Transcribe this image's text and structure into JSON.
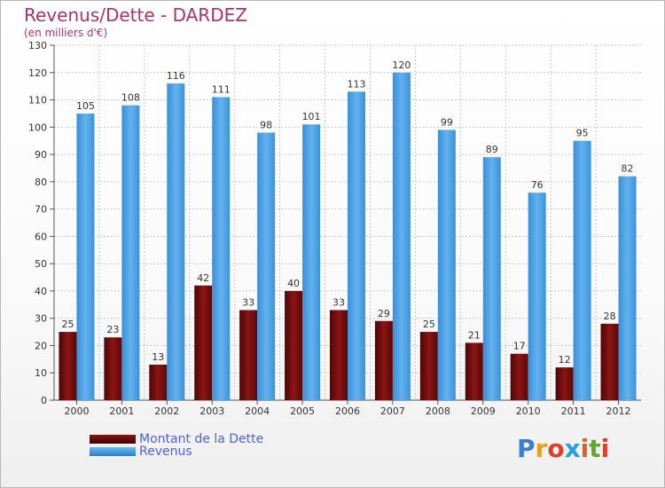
{
  "chart_data": {
    "type": "bar",
    "title": "Revenus/Dette - DARDEZ",
    "subtitle": "(en milliers d'€)",
    "categories": [
      "2000",
      "2001",
      "2002",
      "2003",
      "2004",
      "2005",
      "2006",
      "2007",
      "2008",
      "2009",
      "2010",
      "2011",
      "2012"
    ],
    "series": [
      {
        "name": "Montant de la Dette",
        "color": "#6b0d0d",
        "values": [
          25,
          23,
          13,
          42,
          33,
          40,
          33,
          29,
          25,
          21,
          17,
          12,
          28
        ]
      },
      {
        "name": "Revenus",
        "color": "#4a9fe0",
        "values": [
          105,
          108,
          116,
          111,
          98,
          101,
          113,
          120,
          99,
          89,
          76,
          95,
          82
        ]
      }
    ],
    "ylim": [
      0,
      130
    ],
    "yticks": [
      0,
      10,
      20,
      30,
      40,
      50,
      60,
      70,
      80,
      90,
      100,
      110,
      120,
      130
    ],
    "grid": true,
    "legend": "bottom-left"
  },
  "logo": {
    "letters": [
      "P",
      "r",
      "o",
      "x",
      "i",
      "t",
      "i"
    ],
    "colors": [
      "#3a7fd0",
      "#e8a020",
      "#e0402a",
      "#2a9fd8",
      "#e06020",
      "#60a830",
      "#e0402a"
    ]
  }
}
